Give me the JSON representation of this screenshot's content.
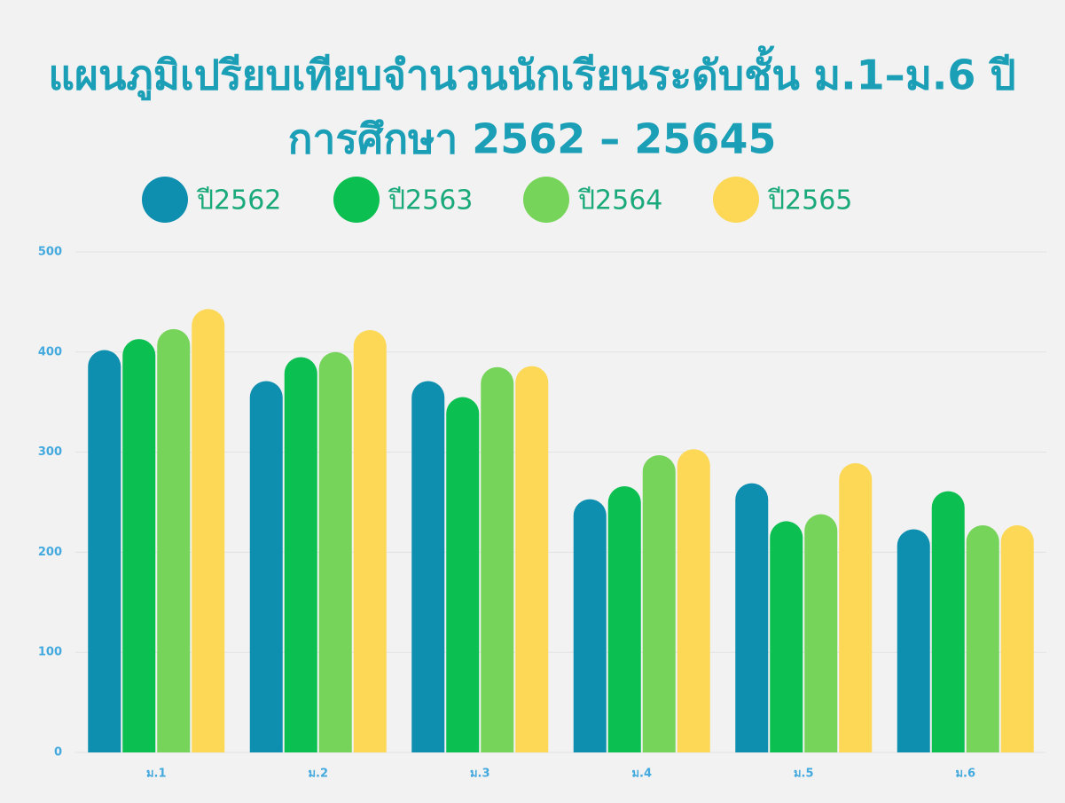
{
  "chart_data": {
    "type": "bar",
    "title": [
      "แผนภูมิเปรียบเทียบจำนวนนักเรียนระดับชั้น ม.1–ม.6 ปี",
      "การศึกษา 2562 – 25645"
    ],
    "categories": [
      "ม.1",
      "ม.2",
      "ม.3",
      "ม.4",
      "ม.5",
      "ม.6"
    ],
    "series": [
      {
        "name": "ปี2562",
        "color": "#0e8fb0",
        "values": [
          402,
          371,
          371,
          253,
          269,
          223
        ]
      },
      {
        "name": "ปี2563",
        "color": "#0bbf50",
        "values": [
          413,
          395,
          355,
          266,
          231,
          261
        ]
      },
      {
        "name": "ปี2564",
        "color": "#77d45a",
        "values": [
          423,
          400,
          385,
          297,
          238,
          227
        ]
      },
      {
        "name": "ปี2565",
        "color": "#fcd856",
        "values": [
          443,
          422,
          386,
          303,
          289,
          227
        ]
      }
    ],
    "ylim": [
      0,
      500
    ],
    "yticks": [
      0,
      100,
      200,
      300,
      400,
      500
    ],
    "grid": true,
    "legend": "top"
  }
}
